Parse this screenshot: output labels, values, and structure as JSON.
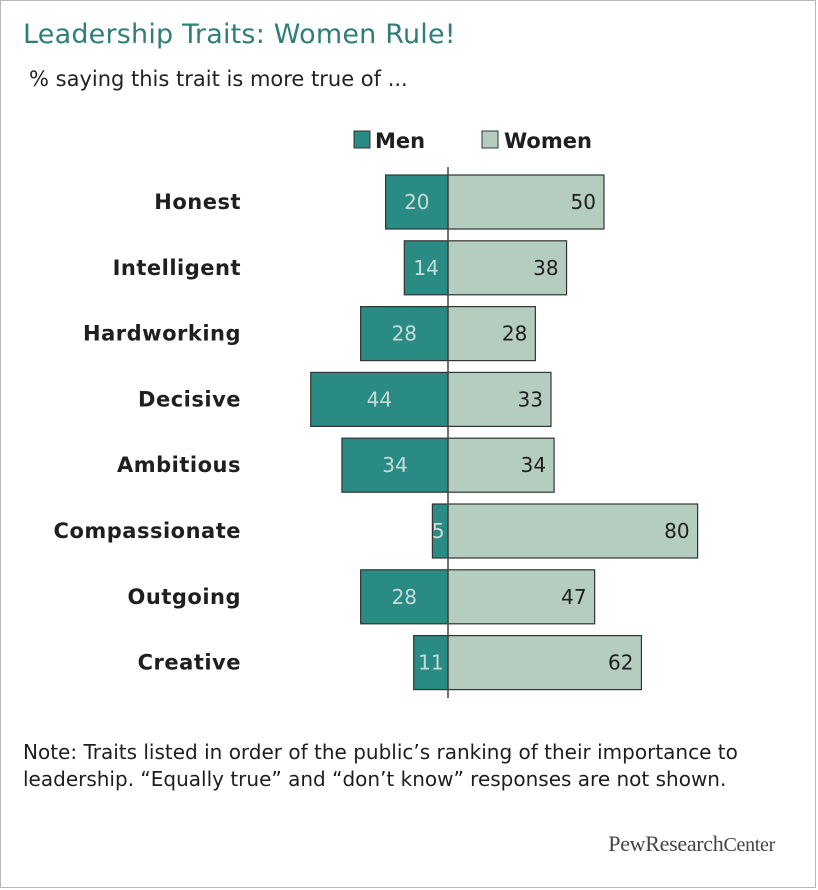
{
  "chart_data": {
    "type": "bar",
    "title": "Leadership Traits: Women Rule!",
    "subtitle": "% saying this trait is more true of ...",
    "categories": [
      "Honest",
      "Intelligent",
      "Hardworking",
      "Decisive",
      "Ambitious",
      "Compassionate",
      "Outgoing",
      "Creative"
    ],
    "series": [
      {
        "name": "Men",
        "values": [
          20,
          14,
          28,
          44,
          34,
          5,
          28,
          11
        ],
        "color": "#2a8a84"
      },
      {
        "name": "Women",
        "values": [
          50,
          38,
          28,
          33,
          34,
          80,
          47,
          62
        ],
        "color": "#b5cdbf"
      }
    ],
    "legend": "top",
    "grid": false
  },
  "note": "Note: Traits listed in order of the public’s ranking of their importance to leadership. “Equally true” and “don’t know” responses are not shown.",
  "source": {
    "part1": "PewResearch",
    "part2": "Center"
  }
}
